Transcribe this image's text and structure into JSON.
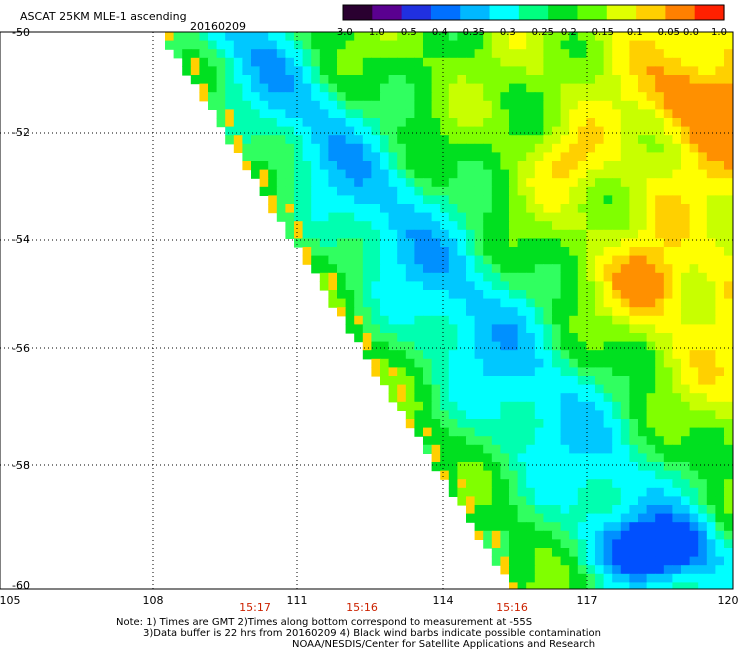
{
  "header": {
    "title": "ASCAT 25KM MLE-1 ascending",
    "date": "20160209"
  },
  "colorbar": {
    "labels": [
      "-3.0",
      "-1.0",
      "-0.5",
      "-0.4",
      "-0.35",
      "-0.3",
      "-0.25",
      "-0.2",
      "-0.15",
      "-0.1",
      "-0.05",
      "0.0",
      "1.0"
    ],
    "colors": [
      "#2a0030",
      "#5a0090",
      "#2030e0",
      "#0070ff",
      "#00b8ff",
      "#00ffff",
      "#00ff80",
      "#00e020",
      "#60ff00",
      "#e0ff00",
      "#ffd000",
      "#ff8000",
      "#ff2000"
    ]
  },
  "axes": {
    "x_ticks": [
      "105",
      "108",
      "111",
      "114",
      "117",
      "120"
    ],
    "y_ticks": [
      "-50",
      "-52",
      "-54",
      "-56",
      "-58",
      "-60"
    ],
    "x_range": [
      105,
      120
    ],
    "y_range": [
      -60,
      -50
    ]
  },
  "times": [
    "15:17",
    "15:16",
    "15:16"
  ],
  "notes": {
    "line1": "Note: 1) Times are GMT 2)Times along bottom correspond to measurement at -55S",
    "line2": "3)Data buffer is 22 hrs from 20160209 4) Black wind barbs indicate possible contamination",
    "line3": "NOAA/NESDIS/Center for Satellite Applications and Research"
  }
}
